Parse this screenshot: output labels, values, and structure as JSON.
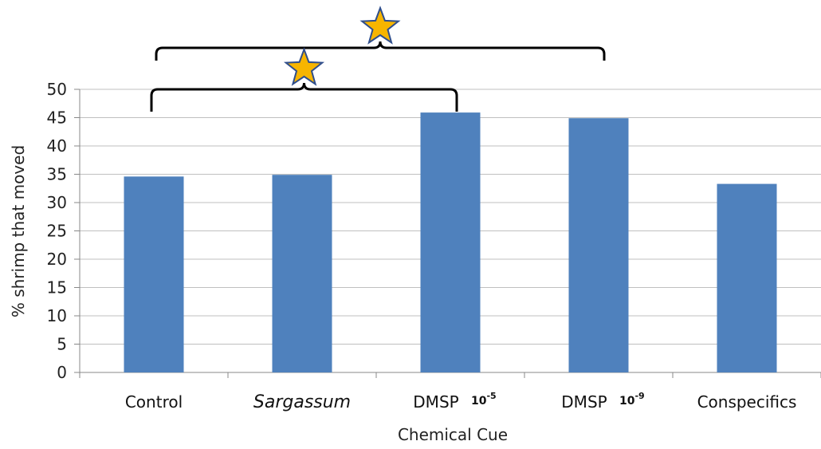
{
  "chart_data": {
    "type": "bar",
    "xlabel": "Chemical Cue",
    "ylabel": "% shrimp that moved",
    "ylim": [
      0,
      50
    ],
    "yticks": [
      0,
      5,
      10,
      15,
      20,
      25,
      30,
      35,
      40,
      45,
      50
    ],
    "grid": true,
    "bar_color": "#4F81BD",
    "categories": [
      {
        "label": "Control",
        "italic": false,
        "sup": ""
      },
      {
        "label": "Sargassum",
        "italic": true,
        "sup": ""
      },
      {
        "label": "DMSP",
        "italic": false,
        "sup_base": "10",
        "sup_exp": "-5"
      },
      {
        "label": "DMSP",
        "italic": false,
        "sup_base": "10",
        "sup_exp": "-9"
      },
      {
        "label": "Conspecifics",
        "italic": false,
        "sup": ""
      }
    ],
    "values": [
      34.6,
      34.9,
      45.9,
      44.9,
      33.3
    ],
    "significance": [
      {
        "from": "Control",
        "to": "DMSP 10-5",
        "marker": "star"
      },
      {
        "from": "Control",
        "to": "DMSP 10-9",
        "marker": "star"
      }
    ],
    "star_color": "#F7B500"
  }
}
